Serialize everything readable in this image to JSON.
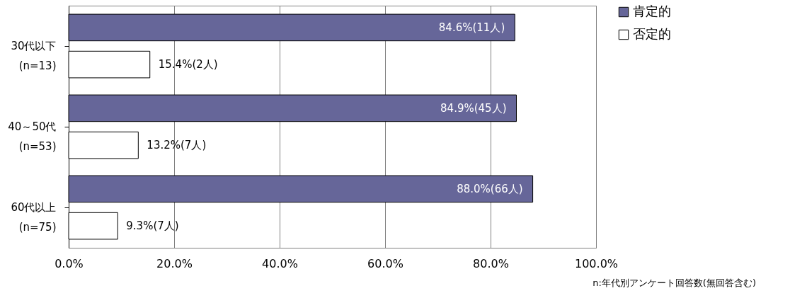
{
  "chart_data": {
    "type": "bar",
    "orientation": "horizontal",
    "categories": [
      "30代以下\n(n=13)",
      "40～50代\n(n=53)",
      "60代以上\n(n=75)"
    ],
    "series": [
      {
        "name": "肯定的",
        "color": "#666699",
        "values": [
          84.6,
          84.9,
          88.0
        ],
        "value_labels": [
          "84.6%(11人)",
          "84.9%(45人)",
          "88.0%(66人)"
        ]
      },
      {
        "name": "否定的",
        "color": "#ffffff",
        "values": [
          15.4,
          13.2,
          9.3
        ],
        "value_labels": [
          "15.4%(2人)",
          "13.2%(7人)",
          "9.3%(7人)"
        ]
      }
    ],
    "xlim": [
      0,
      100
    ],
    "xticks": [
      {
        "value": 0,
        "label": "0.0%"
      },
      {
        "value": 20,
        "label": "20.0%"
      },
      {
        "value": 40,
        "label": "40.0%"
      },
      {
        "value": 60,
        "label": "60.0%"
      },
      {
        "value": 80,
        "label": "80.0%"
      },
      {
        "value": 100,
        "label": "100.0%"
      }
    ],
    "grid": "x",
    "legend": "right",
    "annotations": [
      "n:年代別アンケート回答数(無回答含む)"
    ]
  }
}
